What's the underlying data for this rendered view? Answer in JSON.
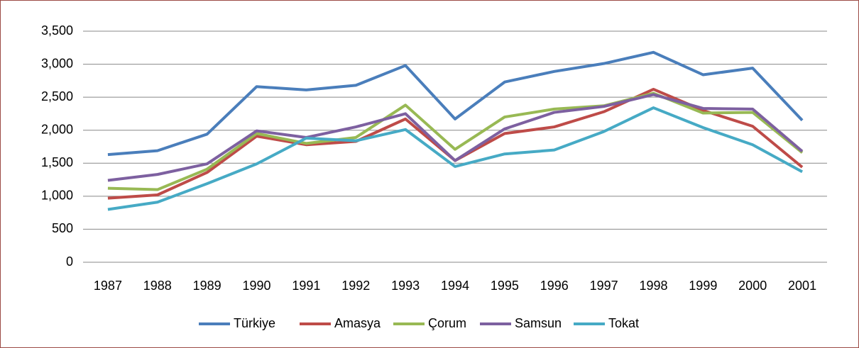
{
  "chart_data": {
    "type": "line",
    "categories": [
      "1987",
      "1988",
      "1989",
      "1990",
      "1991",
      "1992",
      "1993",
      "1994",
      "1995",
      "1996",
      "1997",
      "1998",
      "1999",
      "2000",
      "2001"
    ],
    "series": [
      {
        "name": "Türkiye",
        "color": "#4a7ebb",
        "values": [
          1630,
          1690,
          1940,
          2660,
          2610,
          2680,
          2980,
          2170,
          2730,
          2890,
          3010,
          3180,
          2840,
          2940,
          2150
        ]
      },
      {
        "name": "Amasya",
        "color": "#be4b48",
        "values": [
          970,
          1020,
          1360,
          1910,
          1780,
          1830,
          2170,
          1540,
          1950,
          2050,
          2280,
          2620,
          2300,
          2060,
          1440
        ]
      },
      {
        "name": "Çorum",
        "color": "#98b954",
        "values": [
          1120,
          1100,
          1410,
          1950,
          1800,
          1890,
          2380,
          1710,
          2200,
          2320,
          2370,
          2560,
          2260,
          2270,
          1660
        ]
      },
      {
        "name": "Samsun",
        "color": "#7d60a0",
        "values": [
          1240,
          1330,
          1490,
          1990,
          1890,
          2050,
          2250,
          1540,
          2020,
          2270,
          2360,
          2540,
          2330,
          2320,
          1680
        ]
      },
      {
        "name": "Tokat",
        "color": "#46aac5",
        "values": [
          800,
          910,
          1190,
          1490,
          1880,
          1840,
          2010,
          1450,
          1640,
          1700,
          1980,
          2340,
          2040,
          1780,
          1370
        ]
      }
    ],
    "ylim": [
      0,
      3500
    ],
    "yticks": [
      0,
      500,
      {
        "value": 1000,
        "label": "1,000"
      },
      {
        "value": 1500,
        "label": "1,500"
      },
      {
        "value": 2000,
        "label": "2,000"
      },
      {
        "value": 2500,
        "label": "2,500"
      },
      {
        "value": 3000,
        "label": "3,000"
      },
      {
        "value": 3500,
        "label": "3,500"
      }
    ],
    "grid": true,
    "legend": "bottom"
  }
}
